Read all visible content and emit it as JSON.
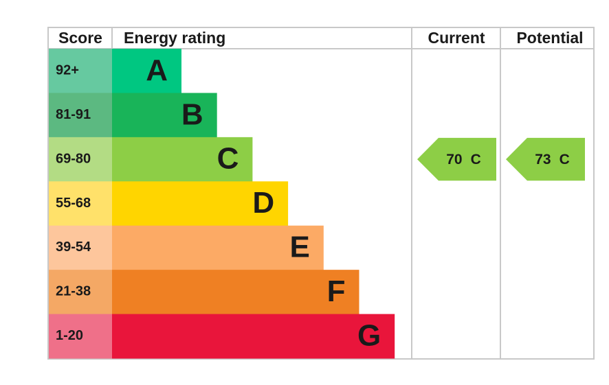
{
  "header": {
    "score": "Score",
    "rating": "Energy rating",
    "current": "Current",
    "potential": "Potential"
  },
  "bands": [
    {
      "score": "92+",
      "letter": "A",
      "color": "#00c781",
      "light": "#66c9a0"
    },
    {
      "score": "81-91",
      "letter": "B",
      "color": "#19b459",
      "light": "#5cb981"
    },
    {
      "score": "69-80",
      "letter": "C",
      "color": "#8dce46",
      "light": "#b3dc84"
    },
    {
      "score": "55-68",
      "letter": "D",
      "color": "#ffd500",
      "light": "#ffe16a"
    },
    {
      "score": "39-54",
      "letter": "E",
      "color": "#fcaa65",
      "light": "#fdc69c"
    },
    {
      "score": "21-38",
      "letter": "F",
      "color": "#ef8023",
      "light": "#f4a865"
    },
    {
      "score": "1-20",
      "letter": "G",
      "color": "#e9153b",
      "light": "#ef7089"
    }
  ],
  "current": {
    "value": 70,
    "letter": "C"
  },
  "potential": {
    "value": 73,
    "letter": "C"
  }
}
